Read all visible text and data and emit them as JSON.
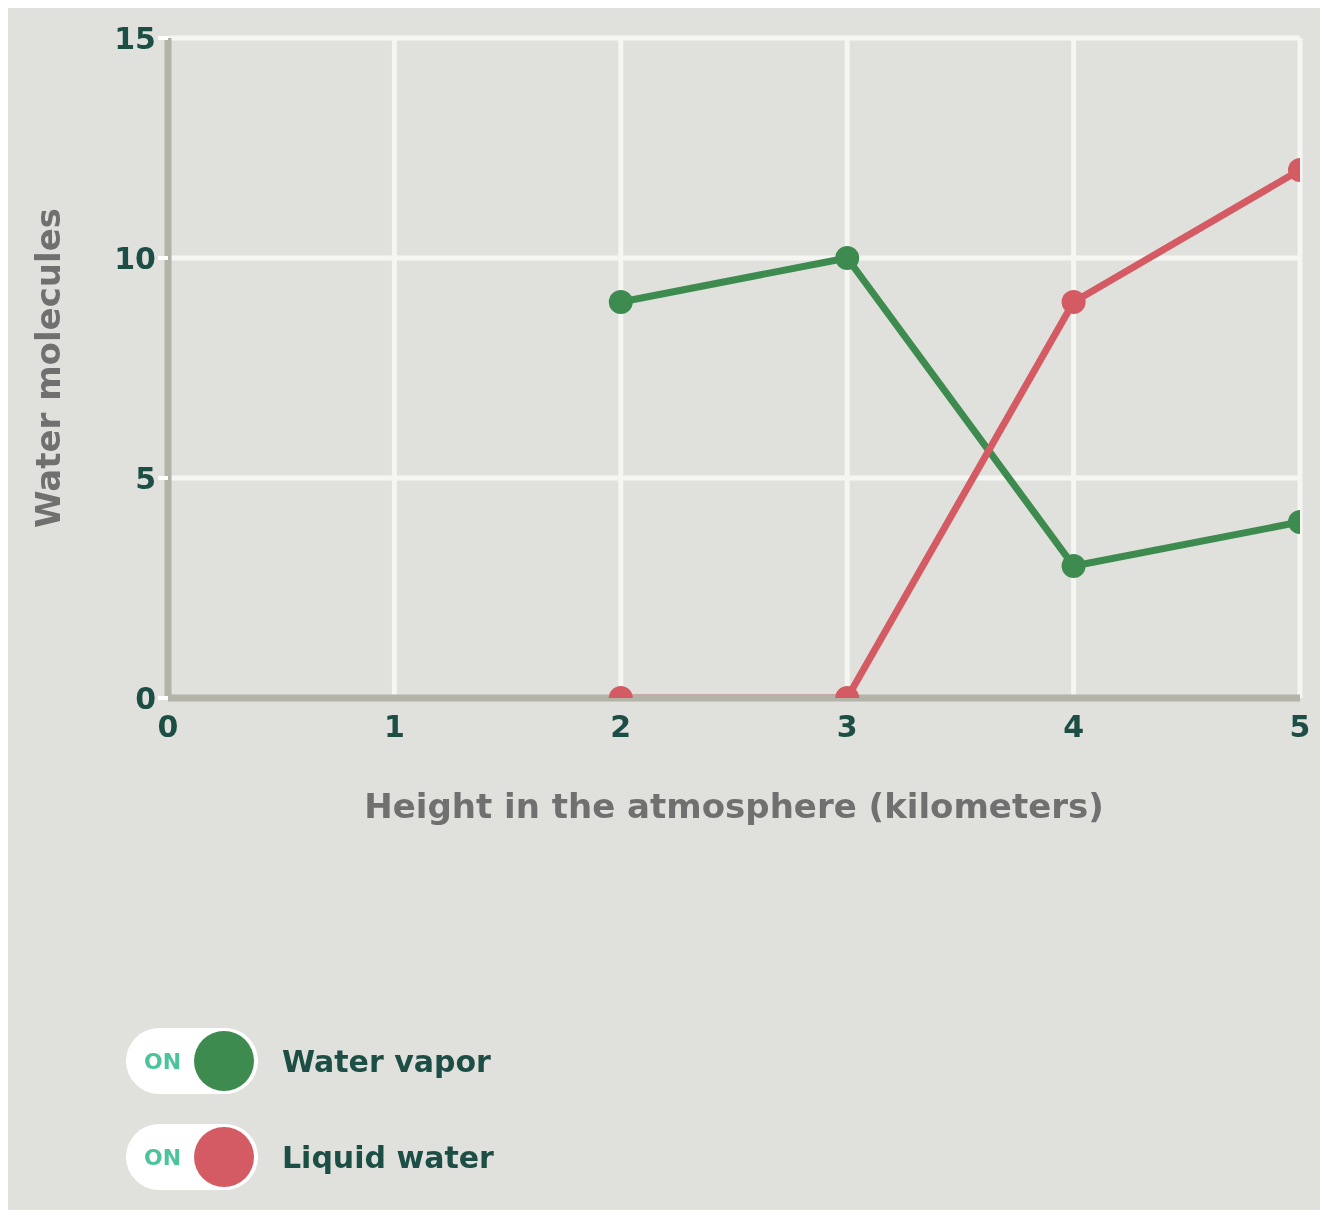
{
  "chart_data": {
    "type": "line",
    "xlabel": "Height in the atmosphere (kilometers)",
    "ylabel": "Water molecules",
    "x": [
      2,
      3,
      4,
      5
    ],
    "series": [
      {
        "name": "Water vapor",
        "color": "#3d8b4f",
        "values": [
          9,
          10,
          3,
          4
        ]
      },
      {
        "name": "Liquid water",
        "color": "#d45b63",
        "values": [
          0,
          0,
          9,
          12
        ]
      }
    ],
    "xlim": [
      0,
      5
    ],
    "xticks": [
      0,
      1,
      2,
      3,
      4,
      5
    ],
    "ylim": [
      0,
      15
    ],
    "yticks": [
      0,
      5,
      10,
      15
    ],
    "grid": true,
    "legend": "bottom left",
    "marker": "circle",
    "line_style": "solid",
    "annotations": [
      "ON",
      "ON"
    ]
  }
}
